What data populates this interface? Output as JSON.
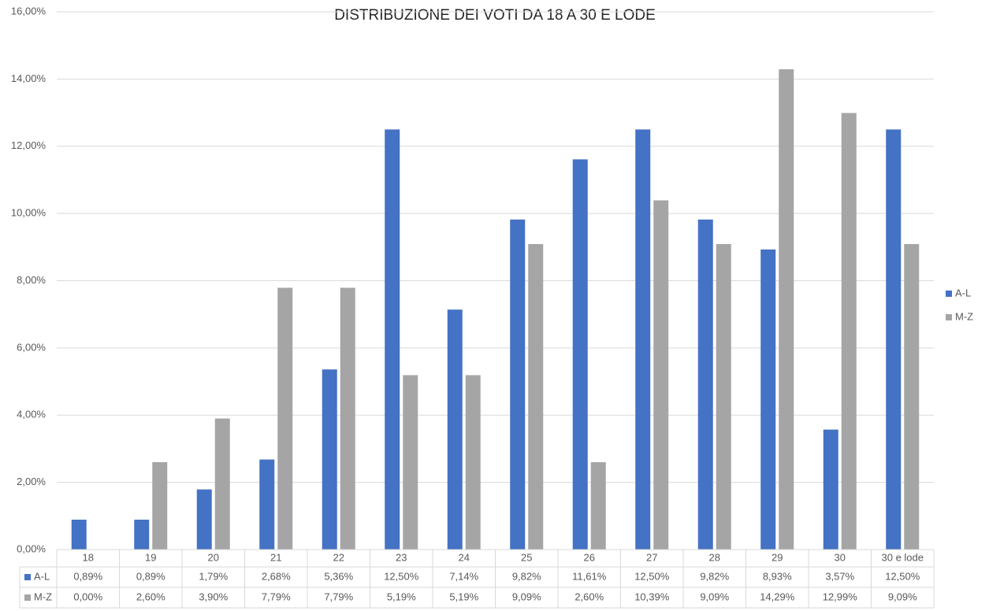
{
  "chart_data": {
    "type": "bar",
    "title": "DISTRIBUZIONE DEI VOTI DA 18 A 30 E LODE",
    "categories": [
      "18",
      "19",
      "20",
      "21",
      "22",
      "23",
      "24",
      "25",
      "26",
      "27",
      "28",
      "29",
      "30",
      "30 e lode"
    ],
    "series": [
      {
        "name": "A-L",
        "color": "#4472c4",
        "values": [
          0.89,
          0.89,
          1.79,
          2.68,
          5.36,
          12.5,
          7.14,
          9.82,
          11.61,
          12.5,
          9.82,
          8.93,
          3.57,
          12.5
        ],
        "value_labels": [
          "0,89%",
          "0,89%",
          "1,79%",
          "2,68%",
          "5,36%",
          "12,50%",
          "7,14%",
          "9,82%",
          "11,61%",
          "12,50%",
          "9,82%",
          "8,93%",
          "3,57%",
          "12,50%"
        ]
      },
      {
        "name": "M-Z",
        "color": "#a5a5a5",
        "values": [
          0.0,
          2.6,
          3.9,
          7.79,
          7.79,
          5.19,
          5.19,
          9.09,
          2.6,
          10.39,
          9.09,
          14.29,
          12.99,
          9.09
        ],
        "value_labels": [
          "0,00%",
          "2,60%",
          "3,90%",
          "7,79%",
          "7,79%",
          "5,19%",
          "5,19%",
          "9,09%",
          "2,60%",
          "10,39%",
          "9,09%",
          "14,29%",
          "12,99%",
          "9,09%"
        ]
      }
    ],
    "ylim": [
      0,
      16
    ],
    "yticks": [
      {
        "value": 0,
        "label": "0,00%"
      },
      {
        "value": 2,
        "label": "2,00%"
      },
      {
        "value": 4,
        "label": "4,00%"
      },
      {
        "value": 6,
        "label": "6,00%"
      },
      {
        "value": 8,
        "label": "8,00%"
      },
      {
        "value": 10,
        "label": "10,00%"
      },
      {
        "value": 12,
        "label": "12,00%"
      },
      {
        "value": 14,
        "label": "14,00%"
      },
      {
        "value": 16,
        "label": "16,00%"
      }
    ],
    "grid": true,
    "legend": "right"
  }
}
